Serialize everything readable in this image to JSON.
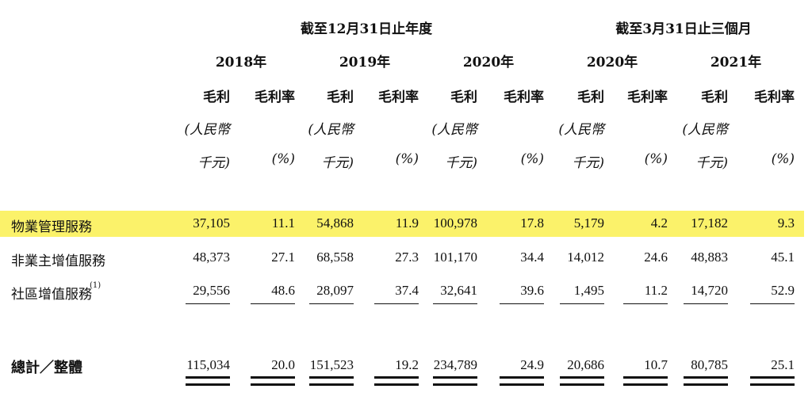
{
  "highlight_color": "#fbf26a",
  "header": {
    "group1": "截至12月31日止年度",
    "group2": "截至3月31日止三個月",
    "years": [
      "2018年",
      "2019年",
      "2020年",
      "2020年",
      "2021年"
    ],
    "col_gross_profit": "毛利",
    "col_margin": "毛利率",
    "unit_line1": "(人民幣",
    "unit_line2": "千元)",
    "unit_pct": "(%)"
  },
  "rows": [
    {
      "label": "物業管理服務",
      "values": [
        "37,105",
        "11.1",
        "54,868",
        "11.9",
        "100,978",
        "17.8",
        "5,179",
        "4.2",
        "17,182",
        "9.3"
      ]
    },
    {
      "label": "非業主增值服務",
      "values": [
        "48,373",
        "27.1",
        "68,558",
        "27.3",
        "101,170",
        "34.4",
        "14,012",
        "24.6",
        "48,883",
        "45.1"
      ]
    },
    {
      "label": "社區增值服務",
      "note": "(1)",
      "values": [
        "29,556",
        "48.6",
        "28,097",
        "37.4",
        "32,641",
        "39.6",
        "1,495",
        "11.2",
        "14,720",
        "52.9"
      ]
    }
  ],
  "total": {
    "label": "總計／整體",
    "values": [
      "115,034",
      "20.0",
      "151,523",
      "19.2",
      "234,789",
      "24.9",
      "20,686",
      "10.7",
      "80,785",
      "25.1"
    ]
  }
}
